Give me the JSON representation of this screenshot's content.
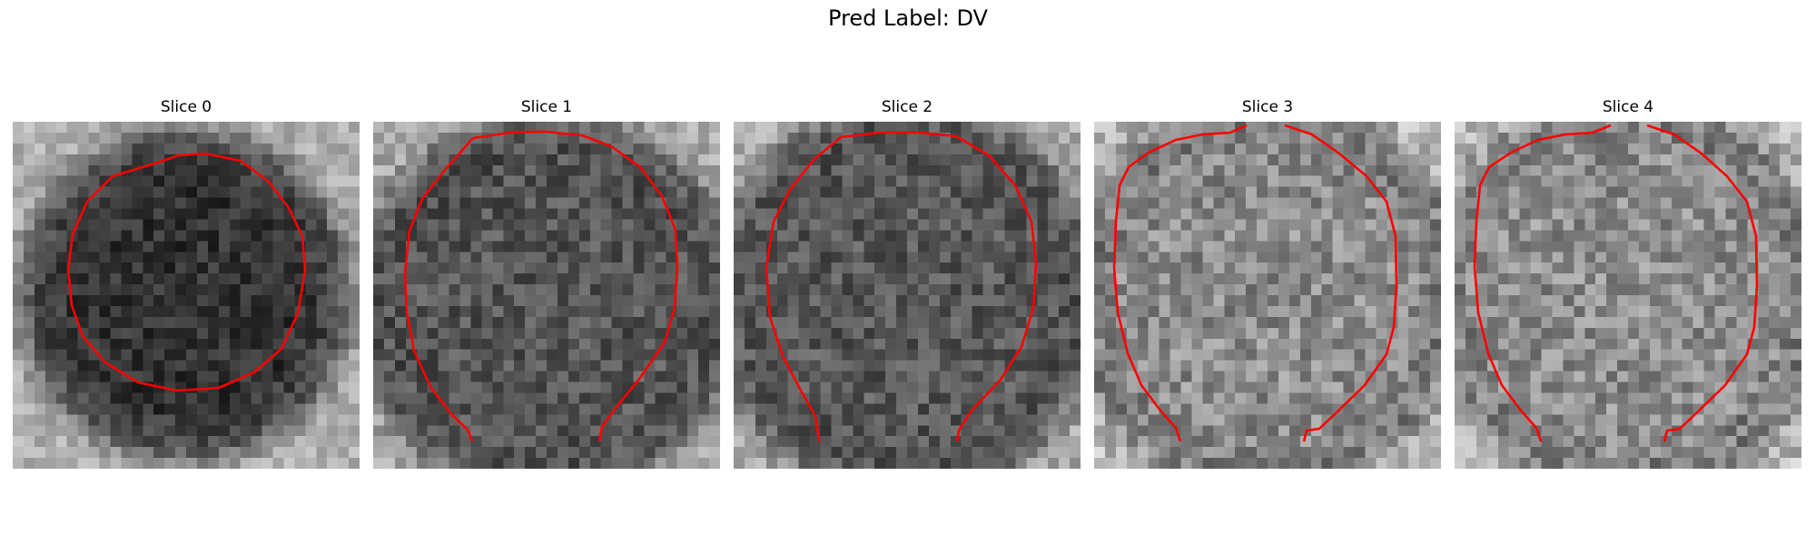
{
  "figure": {
    "title": "Pred Label: DV"
  },
  "panels": [
    {
      "title": "Slice 0",
      "contour_color": "#ff0000"
    },
    {
      "title": "Slice 1",
      "contour_color": "#ff0000"
    },
    {
      "title": "Slice 2",
      "contour_color": "#ff0000"
    },
    {
      "title": "Slice 3",
      "contour_color": "#ff0000"
    },
    {
      "title": "Slice 4",
      "contour_color": "#ff0000"
    }
  ],
  "colormap": "gray"
}
